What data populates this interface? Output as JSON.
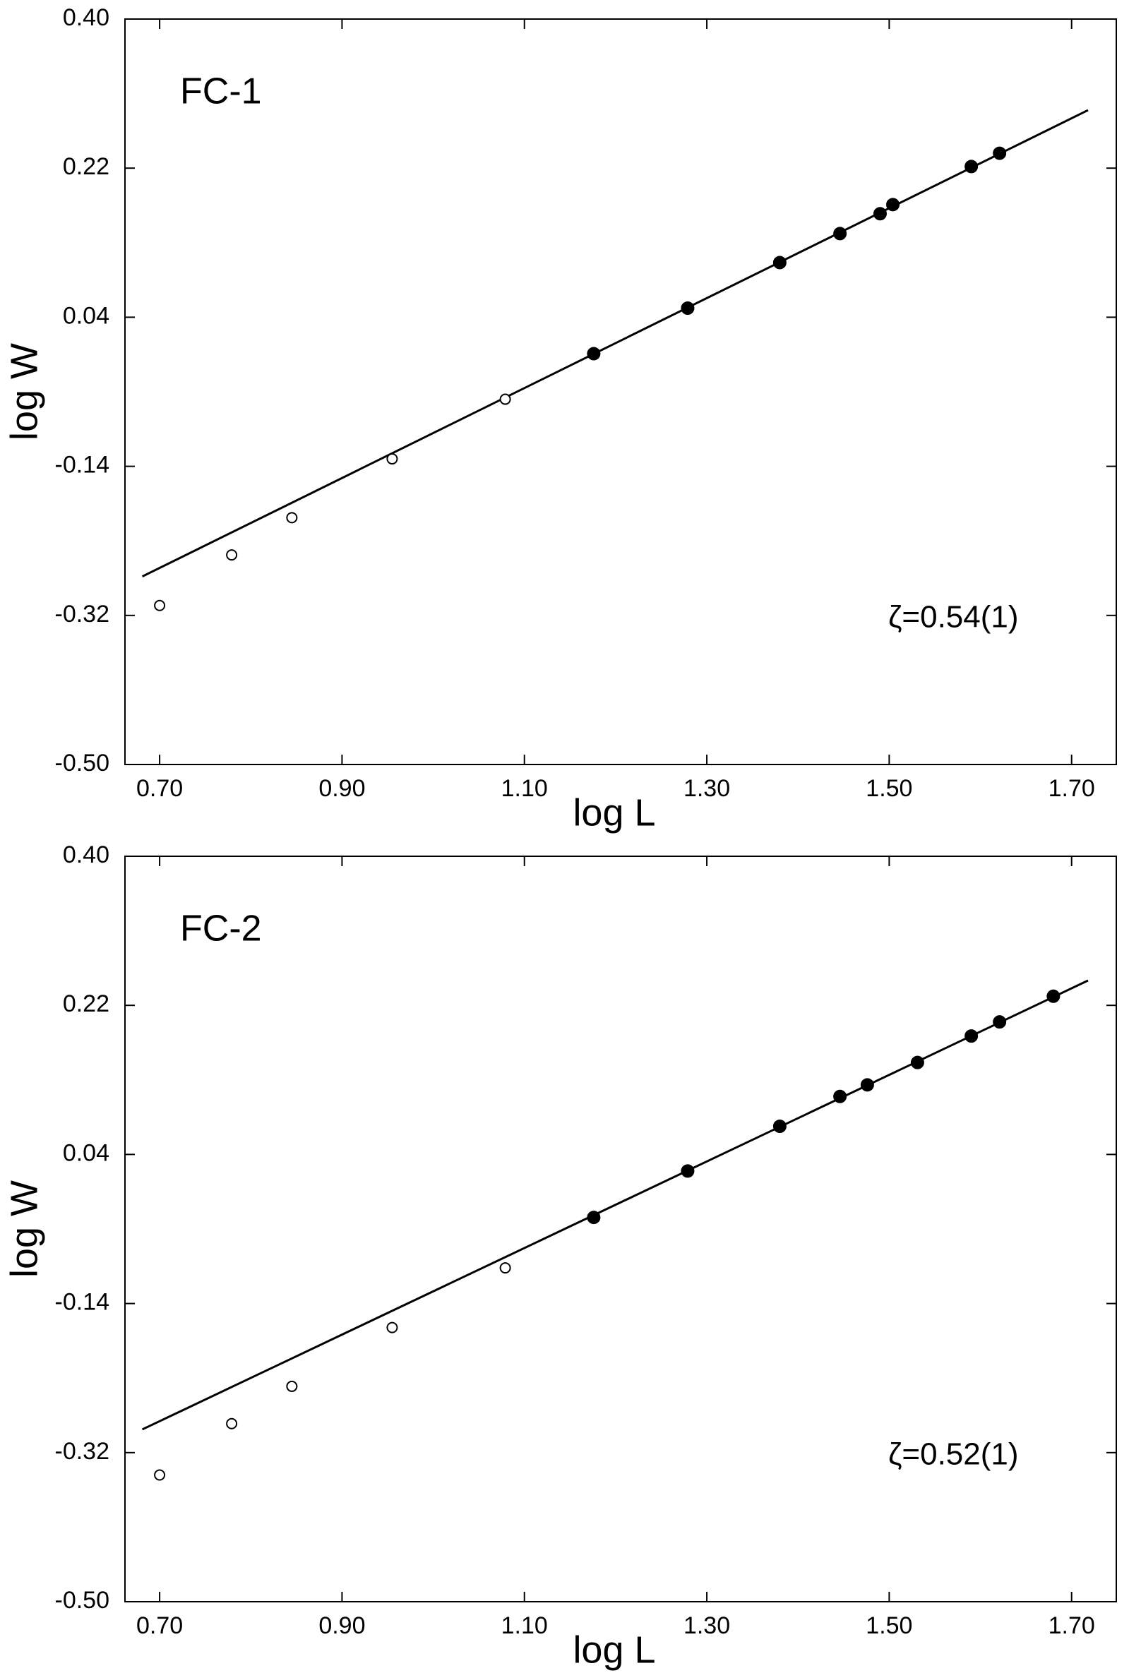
{
  "chart_data": [
    {
      "type": "scatter",
      "panel_label": "FC-1",
      "annotation": "ζ=0.54(1)",
      "x_label": "log L",
      "y_label": "log W",
      "xlim": [
        0.662,
        1.749
      ],
      "ylim": [
        -0.5,
        0.4
      ],
      "xticks": [
        {
          "value": 0.7,
          "label": "0.70"
        },
        {
          "value": 0.9,
          "label": "0.90"
        },
        {
          "value": 1.1,
          "label": "1.10"
        },
        {
          "value": 1.3,
          "label": "1.30"
        },
        {
          "value": 1.5,
          "label": "1.50"
        },
        {
          "value": 1.7,
          "label": "1.70"
        }
      ],
      "yticks": [
        {
          "value": 0.4,
          "label": "0.40"
        },
        0.22,
        0.04,
        -0.14,
        -0.32,
        {
          "value": -0.5,
          "label": "-0.50"
        }
      ],
      "series": [
        {
          "marker": "open",
          "color": "#000000",
          "x": [
            0.7,
            0.779,
            0.845,
            0.955,
            1.079
          ],
          "values": [
            -0.308,
            -0.247,
            -0.202,
            -0.131,
            -0.059
          ]
        },
        {
          "marker": "filled",
          "color": "#000000",
          "x": [
            1.176,
            1.279,
            1.38,
            1.446,
            1.49,
            1.504,
            1.59,
            1.621
          ],
          "values": [
            -0.004,
            0.051,
            0.106,
            0.141,
            0.165,
            0.176,
            0.222,
            0.238
          ]
        }
      ],
      "fit": {
        "color": "#000000",
        "x": [
          0.681,
          1.718
        ],
        "values": [
          -0.273,
          0.29
        ]
      }
    },
    {
      "type": "scatter",
      "panel_label": "FC-2",
      "annotation": "ζ=0.52(1)",
      "x_label": "log L",
      "y_label": "log W",
      "xlim": [
        0.662,
        1.749
      ],
      "ylim": [
        -0.5,
        0.4
      ],
      "xticks": [
        {
          "value": 0.7,
          "label": "0.70"
        },
        {
          "value": 0.9,
          "label": "0.90"
        },
        {
          "value": 1.1,
          "label": "1.10"
        },
        {
          "value": 1.3,
          "label": "1.30"
        },
        {
          "value": 1.5,
          "label": "1.50"
        },
        {
          "value": 1.7,
          "label": "1.70"
        }
      ],
      "yticks": [
        {
          "value": 0.4,
          "label": "0.40"
        },
        0.22,
        0.04,
        -0.14,
        -0.32,
        {
          "value": -0.5,
          "label": "-0.50"
        }
      ],
      "series": [
        {
          "marker": "open",
          "color": "#000000",
          "x": [
            0.7,
            0.779,
            0.845,
            0.955,
            1.079
          ],
          "values": [
            -0.347,
            -0.285,
            -0.24,
            -0.169,
            -0.097
          ]
        },
        {
          "marker": "filled",
          "color": "#000000",
          "x": [
            1.176,
            1.279,
            1.38,
            1.446,
            1.476,
            1.531,
            1.59,
            1.621,
            1.68
          ],
          "values": [
            -0.036,
            0.02,
            0.074,
            0.11,
            0.124,
            0.151,
            0.183,
            0.2,
            0.231
          ]
        }
      ],
      "fit": {
        "color": "#000000",
        "x": [
          0.681,
          1.718
        ],
        "values": [
          -0.292,
          0.25
        ]
      }
    }
  ]
}
